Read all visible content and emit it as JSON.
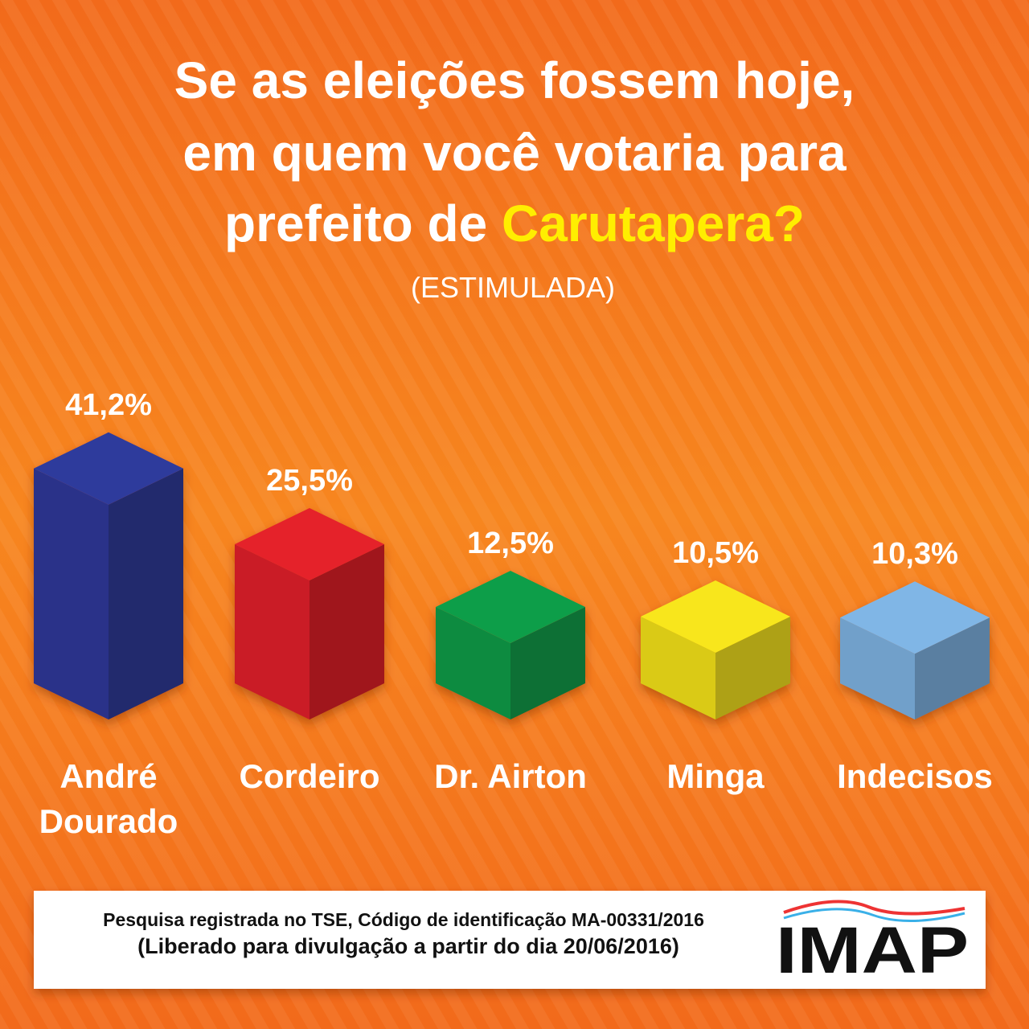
{
  "chart_data": {
    "type": "bar3d",
    "title": [
      "Se as eleições fossem hoje,",
      "em quem você votaria para",
      "prefeito de"
    ],
    "title_highlight": "Carutapera?",
    "subtitle": "(ESTIMULADA)",
    "categories": [
      "André Dourado",
      "Cordeiro",
      "Dr. Airton",
      "Minga",
      "Indecisos"
    ],
    "values": [
      41.2,
      25.5,
      12.5,
      10.5,
      10.3
    ],
    "value_labels": [
      "41,2%",
      "25,5%",
      "12,5%",
      "10,5%",
      "10,3%"
    ],
    "colors": [
      "#2f3a9c",
      "#e5222b",
      "#0b9e4a",
      "#f8e61b",
      "#80b6e6"
    ],
    "footnote": [
      "Pesquisa registrada no TSE, Código de identificação MA-00331/2016",
      "(Liberado para divulgação a partir do dia 20/06/2016)"
    ],
    "logo": "IMAP"
  }
}
